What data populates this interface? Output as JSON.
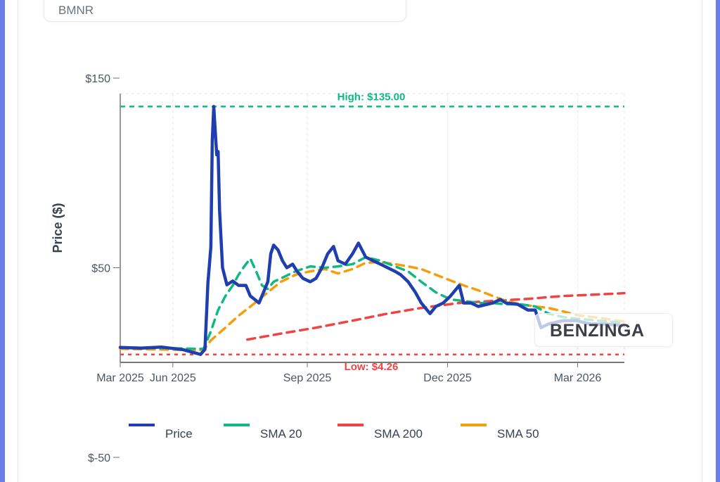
{
  "ticker_input": {
    "value": "BMNR"
  },
  "watermark": "BENZINGA",
  "colors": {
    "price": "#1f3fb0",
    "sma20": "#10b981",
    "sma200": "#ef4444",
    "sma50": "#f59e0b",
    "frame": "#6b7fe8"
  },
  "chart_data": {
    "type": "line",
    "title": "",
    "xlabel": "",
    "ylabel": "Price ($)",
    "xlim": [
      "2025-04-26",
      "2026-04-06"
    ],
    "ylim": [
      -50,
      150
    ],
    "yticks": [
      {
        "value": 150,
        "label": "$150"
      },
      {
        "value": 50,
        "label": "$50"
      },
      {
        "value": -50,
        "label": "$-50"
      }
    ],
    "xticks": [
      {
        "date": "2025-04-26",
        "label": "Mar 2025"
      },
      {
        "date": "2025-06-01",
        "label": "Jun 2025"
      },
      {
        "date": "2025-09-01",
        "label": "Sep 2025"
      },
      {
        "date": "2025-12-06",
        "label": "Dec 2025"
      },
      {
        "date": "2026-03-05",
        "label": "Mar 2026"
      }
    ],
    "grid": true,
    "legend_placement": "bottom",
    "annotations": {
      "high": {
        "value": 135.0,
        "label": "High: $135.00"
      },
      "low": {
        "value": 4.26,
        "label": "Low: $4.26"
      }
    },
    "series": [
      {
        "name": "Price",
        "key": "price",
        "points": [
          [
            "2025-04-26",
            8.0
          ],
          [
            "2025-05-10",
            7.6
          ],
          [
            "2025-05-24",
            8.2
          ],
          [
            "2025-06-08",
            6.8
          ],
          [
            "2025-06-20",
            4.3
          ],
          [
            "2025-06-23",
            7.0
          ],
          [
            "2025-06-25",
            42
          ],
          [
            "2025-06-27",
            61
          ],
          [
            "2025-06-28",
            117
          ],
          [
            "2025-06-29",
            135
          ],
          [
            "2025-07-01",
            109.5
          ],
          [
            "2025-07-02",
            111.3
          ],
          [
            "2025-07-03",
            80
          ],
          [
            "2025-07-05",
            50
          ],
          [
            "2025-07-08",
            41
          ],
          [
            "2025-07-12",
            43
          ],
          [
            "2025-07-16",
            40.7
          ],
          [
            "2025-07-21",
            40.7
          ],
          [
            "2025-07-24",
            35.1
          ],
          [
            "2025-07-27",
            33.3
          ],
          [
            "2025-07-30",
            31.4
          ],
          [
            "2025-08-02",
            37.0
          ],
          [
            "2025-08-05",
            42.6
          ],
          [
            "2025-08-07",
            57.4
          ],
          [
            "2025-08-09",
            61.9
          ],
          [
            "2025-08-12",
            59.3
          ],
          [
            "2025-08-15",
            53.7
          ],
          [
            "2025-08-18",
            50.0
          ],
          [
            "2025-08-22",
            51.9
          ],
          [
            "2025-08-25",
            48.1
          ],
          [
            "2025-08-29",
            44.4
          ],
          [
            "2025-09-03",
            42.6
          ],
          [
            "2025-09-07",
            44.4
          ],
          [
            "2025-09-11",
            50.0
          ],
          [
            "2025-09-15",
            57.4
          ],
          [
            "2025-09-19",
            61.2
          ],
          [
            "2025-09-22",
            53.7
          ],
          [
            "2025-09-27",
            51.9
          ],
          [
            "2025-10-02",
            57.4
          ],
          [
            "2025-10-06",
            63.0
          ],
          [
            "2025-10-11",
            55.6
          ],
          [
            "2025-10-16",
            53.7
          ],
          [
            "2025-10-21",
            51.9
          ],
          [
            "2025-10-26",
            50.0
          ],
          [
            "2025-10-31",
            48.1
          ],
          [
            "2025-11-04",
            46.3
          ],
          [
            "2025-11-09",
            42.6
          ],
          [
            "2025-11-14",
            37.0
          ],
          [
            "2025-11-18",
            31.4
          ],
          [
            "2025-11-24",
            25.8
          ],
          [
            "2025-11-28",
            29.6
          ],
          [
            "2025-12-03",
            31.4
          ],
          [
            "2025-12-08",
            35.1
          ],
          [
            "2025-12-14",
            40.7
          ],
          [
            "2025-12-17",
            31.4
          ],
          [
            "2025-12-22",
            31.4
          ],
          [
            "2025-12-27",
            29.6
          ],
          [
            "2026-01-06",
            31.4
          ],
          [
            "2026-01-11",
            33.3
          ],
          [
            "2026-01-15",
            31.4
          ],
          [
            "2026-01-23",
            30.7
          ],
          [
            "2026-01-30",
            27.7
          ],
          [
            "2026-02-04",
            27.7
          ],
          [
            "2026-02-08",
            18.4
          ],
          [
            "2026-02-13",
            20.3
          ],
          [
            "2026-02-23",
            22.1
          ],
          [
            "2026-03-04",
            22.1
          ],
          [
            "2026-03-14",
            20.3
          ],
          [
            "2026-03-24",
            20.3
          ],
          [
            "2026-04-06",
            19.5
          ]
        ]
      },
      {
        "name": "SMA 20",
        "key": "sma20",
        "points": [
          [
            "2025-04-26",
            8.0
          ],
          [
            "2025-06-22",
            7.2
          ],
          [
            "2025-06-27",
            16.5
          ],
          [
            "2025-07-02",
            27.7
          ],
          [
            "2025-07-07",
            35.1
          ],
          [
            "2025-07-12",
            40.7
          ],
          [
            "2025-07-16",
            46.3
          ],
          [
            "2025-07-21",
            51.9
          ],
          [
            "2025-07-24",
            54.8
          ],
          [
            "2025-07-28",
            48.1
          ],
          [
            "2025-08-01",
            40.7
          ],
          [
            "2025-08-05",
            38.8
          ],
          [
            "2025-08-09",
            42.6
          ],
          [
            "2025-08-14",
            44.4
          ],
          [
            "2025-08-24",
            48.1
          ],
          [
            "2025-09-03",
            50.7
          ],
          [
            "2025-09-13",
            50.0
          ],
          [
            "2025-09-22",
            50.7
          ],
          [
            "2025-10-02",
            51.9
          ],
          [
            "2025-10-11",
            55.6
          ],
          [
            "2025-10-21",
            53.7
          ],
          [
            "2025-10-31",
            50.7
          ],
          [
            "2025-11-09",
            48.1
          ],
          [
            "2025-11-18",
            42.6
          ],
          [
            "2025-11-28",
            37.0
          ],
          [
            "2025-12-08",
            33.3
          ],
          [
            "2025-12-17",
            32.5
          ],
          [
            "2025-12-27",
            31.4
          ],
          [
            "2026-01-06",
            31.4
          ],
          [
            "2026-01-15",
            30.7
          ],
          [
            "2026-01-25",
            30.7
          ],
          [
            "2026-02-04",
            29.6
          ],
          [
            "2026-02-13",
            25.8
          ],
          [
            "2026-02-23",
            24.0
          ],
          [
            "2026-03-04",
            23.2
          ],
          [
            "2026-03-19",
            22.1
          ],
          [
            "2026-04-06",
            21.0
          ]
        ]
      },
      {
        "name": "SMA 200",
        "key": "sma200",
        "points": [
          [
            "2025-07-22",
            12.1
          ],
          [
            "2025-08-15",
            15.4
          ],
          [
            "2025-09-07",
            18.4
          ],
          [
            "2025-10-02",
            22.1
          ],
          [
            "2025-10-26",
            25.8
          ],
          [
            "2025-11-18",
            28.8
          ],
          [
            "2025-12-14",
            31.4
          ],
          [
            "2026-01-06",
            32.5
          ],
          [
            "2026-01-30",
            33.6
          ],
          [
            "2026-02-23",
            35.1
          ],
          [
            "2026-03-19",
            35.9
          ],
          [
            "2026-04-06",
            36.6
          ]
        ]
      },
      {
        "name": "SMA 50",
        "key": "sma50",
        "points": [
          [
            "2025-04-26",
            7.2
          ],
          [
            "2025-06-22",
            6.5
          ],
          [
            "2025-06-27",
            11.7
          ],
          [
            "2025-07-07",
            18.4
          ],
          [
            "2025-07-16",
            24.7
          ],
          [
            "2025-07-26",
            30.7
          ],
          [
            "2025-08-05",
            37.0
          ],
          [
            "2025-08-14",
            42.6
          ],
          [
            "2025-08-24",
            46.3
          ],
          [
            "2025-09-03",
            48.1
          ],
          [
            "2025-09-13",
            49.3
          ],
          [
            "2025-09-22",
            47.0
          ],
          [
            "2025-10-02",
            49.3
          ],
          [
            "2025-10-11",
            52.6
          ],
          [
            "2025-10-21",
            53.0
          ],
          [
            "2025-10-31",
            51.9
          ],
          [
            "2025-11-09",
            50.7
          ],
          [
            "2025-11-18",
            49.3
          ],
          [
            "2025-11-28",
            46.3
          ],
          [
            "2025-12-08",
            43.3
          ],
          [
            "2025-12-17",
            40.7
          ],
          [
            "2025-12-27",
            38.1
          ],
          [
            "2026-01-06",
            35.1
          ],
          [
            "2026-01-15",
            32.5
          ],
          [
            "2026-01-25",
            30.7
          ],
          [
            "2026-02-04",
            29.6
          ],
          [
            "2026-02-13",
            28.8
          ],
          [
            "2026-02-23",
            27.0
          ],
          [
            "2026-03-04",
            25.1
          ],
          [
            "2026-03-19",
            23.6
          ],
          [
            "2026-04-06",
            21.7
          ]
        ]
      }
    ]
  }
}
